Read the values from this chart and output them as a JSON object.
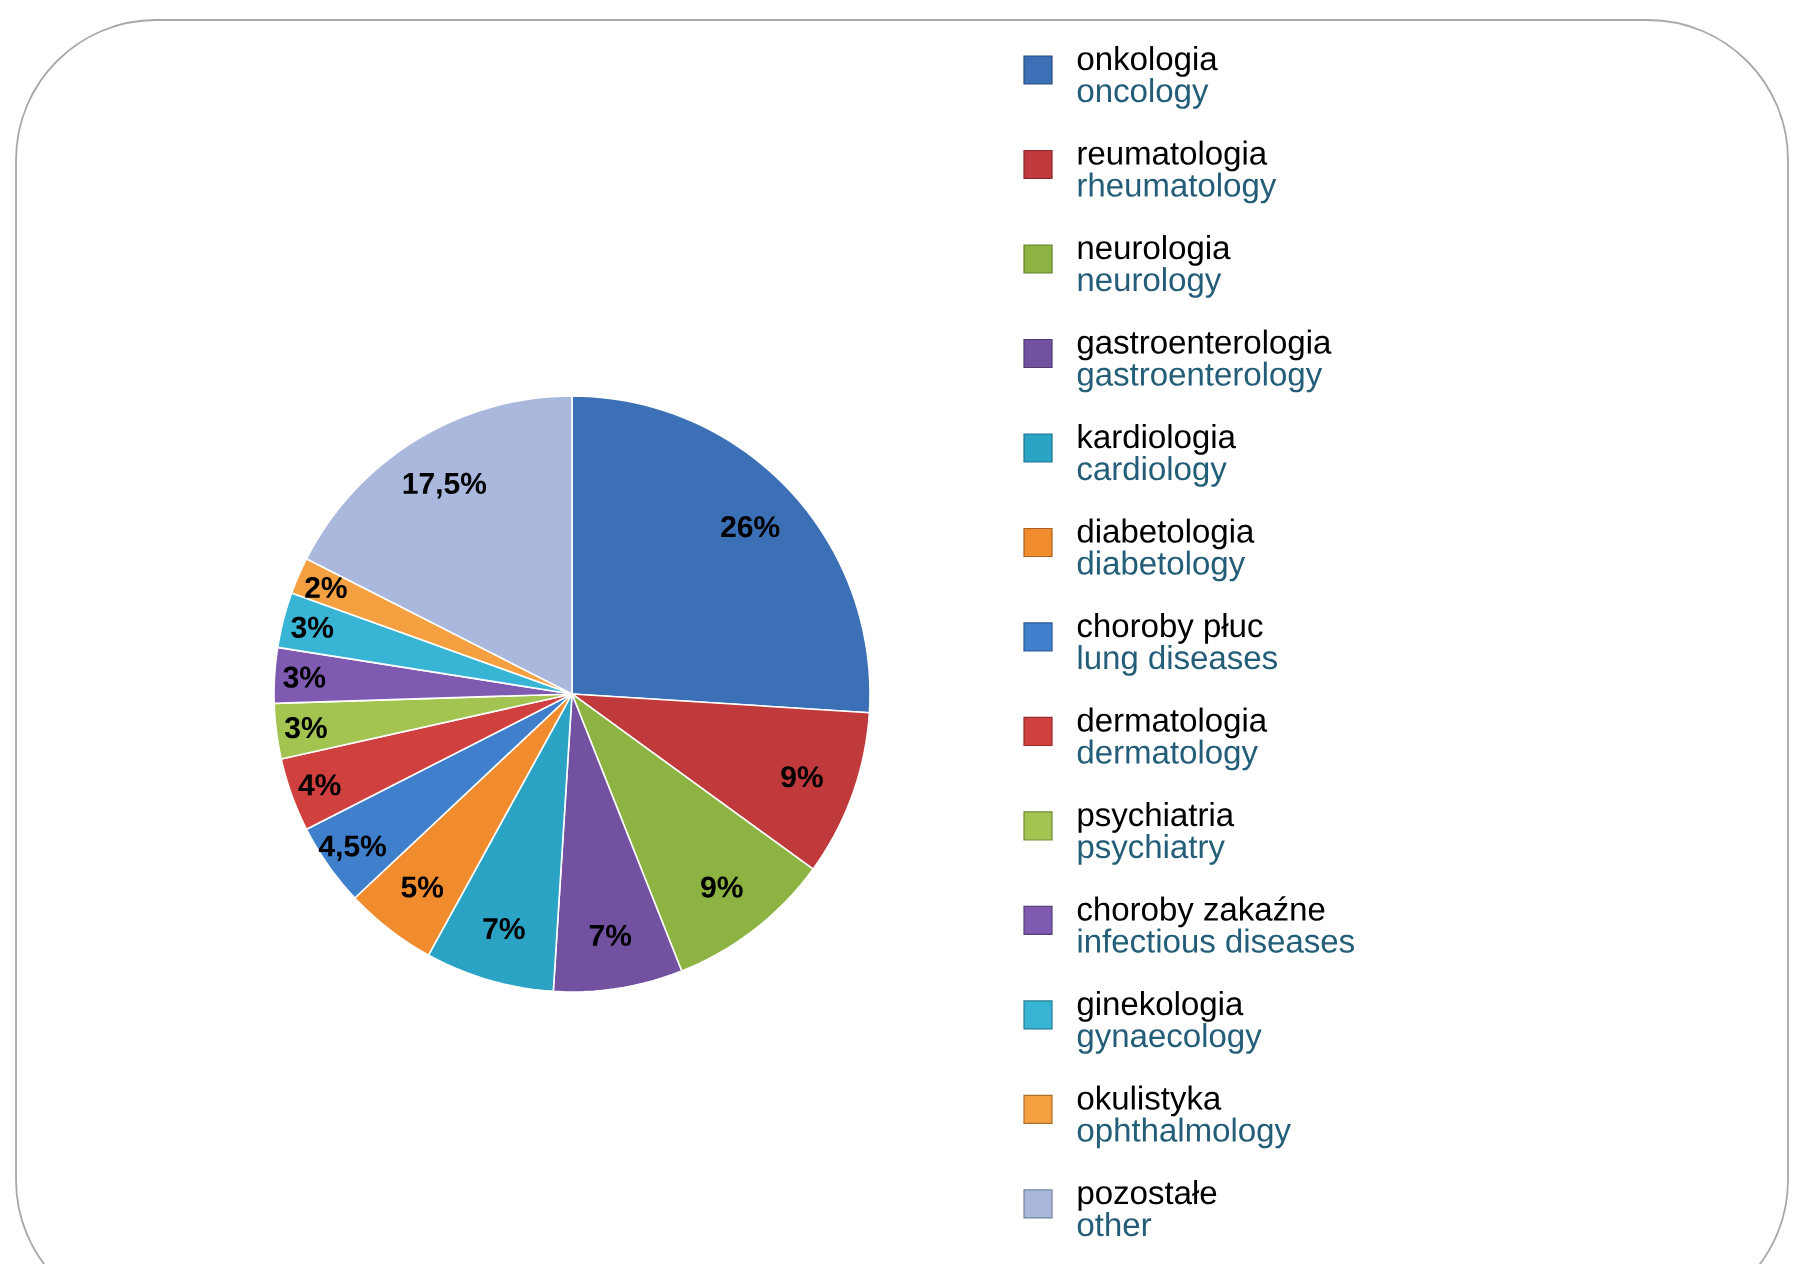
{
  "chart_data": {
    "type": "pie",
    "categories": [
      "onkologia",
      "reumatologia",
      "neurologia",
      "gastroenterologia",
      "kardiologia",
      "diabetologia",
      "choroby płuc",
      "dermatologia",
      "psychiatria",
      "choroby zakaźne",
      "ginekologia",
      "okulistyka",
      "pozostałe"
    ],
    "values": [
      26,
      9,
      9,
      7,
      7,
      5,
      4.5,
      4,
      3,
      3,
      3,
      2,
      17.5
    ],
    "value_labels": [
      "26%",
      "9%",
      "9%",
      "7%",
      "7%",
      "5%",
      "4,5%",
      "4%",
      "3%",
      "3%",
      "3%",
      "2%",
      "17,5%"
    ],
    "colors": [
      "#3b6fb6",
      "#c0393b",
      "#8db443",
      "#7151a0",
      "#2aa3c4",
      "#f08b2e",
      "#3f7fcc",
      "#d0403f",
      "#a3c450",
      "#7e5ab0",
      "#38b5d5",
      "#f5a040",
      "#a9b8dc"
    ],
    "legend": "right",
    "annotations": [
      "oncology",
      "rheumatology",
      "neurology",
      "gastroenterology",
      "cardiology",
      "diabetology",
      "lung diseases",
      "dermatology",
      "psychiatry",
      "infectious diseases",
      "gynaecology",
      "ophthalmology",
      "other"
    ]
  }
}
